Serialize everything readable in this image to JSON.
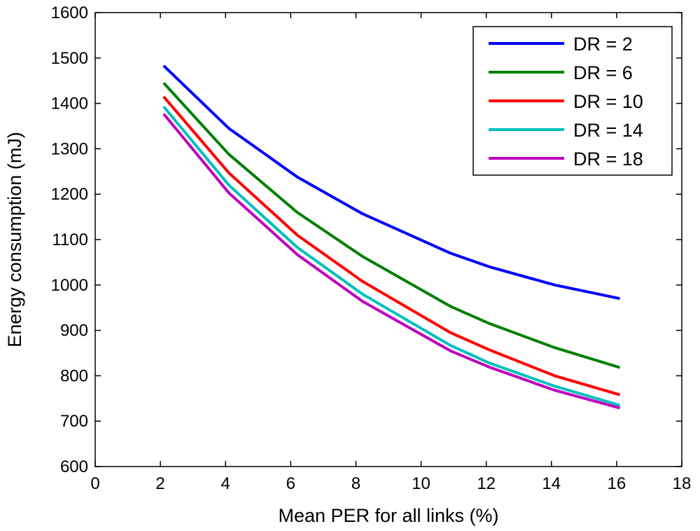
{
  "chart_data": {
    "type": "line",
    "title": "",
    "xlabel": "Mean PER for all links (%)",
    "ylabel": "Energy consumption (mJ)",
    "xlim": [
      0,
      18
    ],
    "ylim": [
      600,
      1600
    ],
    "xticks": [
      0,
      2,
      4,
      6,
      8,
      10,
      12,
      14,
      16,
      18
    ],
    "yticks": [
      600,
      700,
      800,
      900,
      1000,
      1100,
      1200,
      1300,
      1400,
      1500,
      1600
    ],
    "grid": false,
    "legend_position": "top-right",
    "x": [
      2.1,
      4.1,
      6.2,
      8.2,
      10.9,
      12.1,
      14.1,
      16.1
    ],
    "series": [
      {
        "name": "DR = 2",
        "color": "#0000ff",
        "values": [
          1483,
          1345,
          1238,
          1157,
          1070,
          1040,
          1000,
          970
        ]
      },
      {
        "name": "DR = 6",
        "color": "#008000",
        "values": [
          1445,
          1288,
          1160,
          1063,
          953,
          915,
          862,
          818
        ]
      },
      {
        "name": "DR = 10",
        "color": "#ff0000",
        "values": [
          1415,
          1247,
          1110,
          1008,
          895,
          857,
          800,
          758
        ]
      },
      {
        "name": "DR = 14",
        "color": "#00bfbf",
        "values": [
          1393,
          1220,
          1083,
          980,
          867,
          828,
          777,
          735
        ]
      },
      {
        "name": "DR = 18",
        "color": "#bf00bf",
        "values": [
          1377,
          1203,
          1067,
          964,
          855,
          819,
          768,
          729
        ]
      }
    ]
  }
}
